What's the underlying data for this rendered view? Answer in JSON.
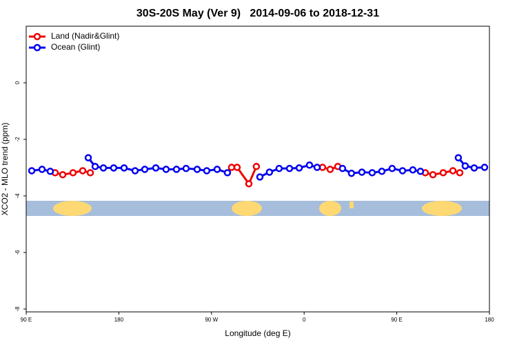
{
  "chart_data": {
    "type": "line",
    "title": "30S-20S May (Ver 9)   2014-09-06 to 2018-12-31",
    "xlabel": "Longitude (deg E)",
    "ylabel": "XCO2 - MLO trend (ppm)",
    "xlim": [
      90,
      540
    ],
    "xticks": [
      {
        "value": 90,
        "label": "90 E"
      },
      {
        "value": 180,
        "label": "180"
      },
      {
        "value": 270,
        "label": "90 W"
      },
      {
        "value": 360,
        "label": "0"
      },
      {
        "value": 450,
        "label": "90 E"
      },
      {
        "value": 540,
        "label": "180"
      }
    ],
    "ylim": [
      -8.1,
      2
    ],
    "yticks": [
      0,
      -2,
      -4,
      -6,
      -8
    ],
    "legend": "top-left",
    "series": [
      {
        "name": "Land (Nadir&Glint)",
        "color": "#ee0000",
        "x": [
          118.1,
          125.5,
          135.5,
          144.9,
          152.3,
          null,
          289.5,
          294.9,
          306.3,
          313.6,
          null,
          377.9,
          385.3,
          392.7,
          null,
          477.7,
          485.1,
          495.1,
          504.5,
          511.2
        ],
        "values": [
          -3.18,
          -3.25,
          -3.18,
          -3.11,
          -3.18,
          null,
          -2.99,
          -2.99,
          -3.57,
          -2.96,
          null,
          -2.99,
          -3.06,
          -2.96,
          null,
          -3.18,
          -3.25,
          -3.18,
          -3.11,
          -3.18
        ]
      },
      {
        "name": "Ocean (Glint)",
        "color": "#0000ee",
        "x": [
          95.4,
          105.4,
          113.4,
          null,
          150.3,
          157,
          165,
          175,
          185.1,
          195.8,
          205.2,
          215.9,
          225.9,
          236,
          245.3,
          256.1,
          265.4,
          275.5,
          285.5,
          null,
          317,
          326.3,
          335.7,
          345.8,
          355.2,
          365.2,
          372.6,
          null,
          397.3,
          406,
          416.1,
          426.1,
          435.5,
          445.5,
          455.6,
          465.6,
          473,
          null,
          509.8,
          516.5,
          525.2,
          535.3
        ],
        "values": [
          -3.11,
          -3.06,
          -3.13,
          null,
          -2.65,
          -2.96,
          -3.01,
          -3.01,
          -3.01,
          -3.11,
          -3.06,
          -3.01,
          -3.06,
          -3.06,
          -3.03,
          -3.06,
          -3.11,
          -3.06,
          -3.18,
          null,
          -3.33,
          -3.16,
          -3.03,
          -3.03,
          -3.01,
          -2.91,
          -2.99,
          null,
          -3.03,
          -3.2,
          -3.16,
          -3.18,
          -3.13,
          -3.03,
          -3.11,
          -3.08,
          -3.13,
          null,
          -2.65,
          -2.94,
          -3.01,
          -2.99
        ]
      }
    ]
  }
}
